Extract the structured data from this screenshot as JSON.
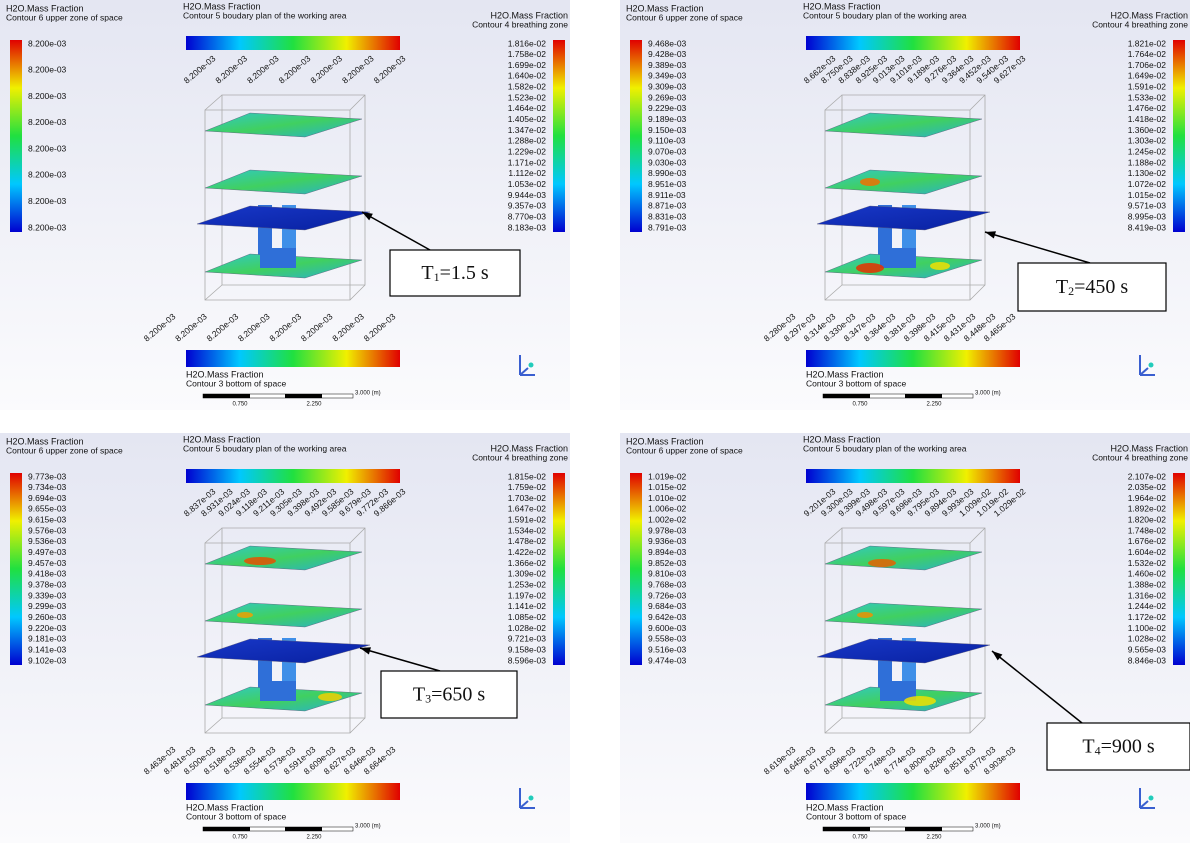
{
  "panels": [
    {
      "upper": {
        "title": "H2O.Mass Fraction",
        "subtitle": "Contour 6 upper zone of space",
        "labels": [
          "8.200e-03",
          "8.200e-03",
          "8.200e-03",
          "8.200e-03",
          "8.200e-03",
          "8.200e-03",
          "8.200e-03",
          "8.200e-03"
        ]
      },
      "top": {
        "title": "H2O.Mass Fraction",
        "subtitle": "Contour 5 boudary plan of the working area",
        "labels": [
          "8.200e-03",
          "8.200e-03",
          "8.200e-03",
          "8.200e-03",
          "8.200e-03",
          "8.200e-03",
          "8.200e-03"
        ]
      },
      "right": {
        "title": "H2O.Mass Fraction",
        "subtitle": "Contour 4 breathing zone",
        "labels": [
          "1.816e-02",
          "1.758e-02",
          "1.699e-02",
          "1.640e-02",
          "1.582e-02",
          "1.523e-02",
          "1.464e-02",
          "1.405e-02",
          "1.347e-02",
          "1.288e-02",
          "1.229e-02",
          "1.171e-02",
          "1.112e-02",
          "1.053e-02",
          "9.944e-03",
          "9.357e-03",
          "8.770e-03",
          "8.183e-03"
        ]
      },
      "bottom": {
        "title": "H2O.Mass Fraction",
        "subtitle": "Contour 3 bottom of space",
        "labels": [
          "8.200e-03",
          "8.200e-03",
          "8.200e-03",
          "8.200e-03",
          "8.200e-03",
          "8.200e-03",
          "8.200e-03",
          "8.200e-03"
        ]
      },
      "scale": [
        "0.750",
        "2.250",
        "3.000 (m)"
      ],
      "time": {
        "symbol": "T",
        "subscript": "1",
        "rest": "=1.5 s"
      }
    },
    {
      "upper": {
        "title": "H2O.Mass Fraction",
        "subtitle": "Contour 6 upper zone of space",
        "labels": [
          "9.468e-03",
          "9.428e-03",
          "9.389e-03",
          "9.349e-03",
          "9.309e-03",
          "9.269e-03",
          "9.229e-03",
          "9.189e-03",
          "9.150e-03",
          "9.110e-03",
          "9.070e-03",
          "9.030e-03",
          "8.990e-03",
          "8.951e-03",
          "8.911e-03",
          "8.871e-03",
          "8.831e-03",
          "8.791e-03"
        ]
      },
      "top": {
        "title": "H2O.Mass Fraction",
        "subtitle": "Contour 5 boudary plan of the working area",
        "labels": [
          "8.662e-03",
          "8.750e-03",
          "8.838e-03",
          "8.925e-03",
          "9.013e-03",
          "9.101e-03",
          "9.189e-03",
          "9.276e-03",
          "9.364e-03",
          "9.452e-03",
          "9.540e-03",
          "9.627e-03"
        ]
      },
      "right": {
        "title": "H2O.Mass Fraction",
        "subtitle": "Contour 4 breathing zone",
        "labels": [
          "1.821e-02",
          "1.764e-02",
          "1.706e-02",
          "1.649e-02",
          "1.591e-02",
          "1.533e-02",
          "1.476e-02",
          "1.418e-02",
          "1.360e-02",
          "1.303e-02",
          "1.245e-02",
          "1.188e-02",
          "1.130e-02",
          "1.072e-02",
          "1.015e-02",
          "9.571e-03",
          "8.995e-03",
          "8.419e-03"
        ]
      },
      "bottom": {
        "title": "H2O.Mass Fraction",
        "subtitle": "Contour 3 bottom of space",
        "labels": [
          "8.280e-03",
          "8.297e-03",
          "8.314e-03",
          "8.330e-03",
          "8.347e-03",
          "8.364e-03",
          "8.381e-03",
          "8.398e-03",
          "8.415e-03",
          "8.431e-03",
          "8.448e-03",
          "8.465e-03"
        ]
      },
      "scale": [
        "0.750",
        "2.250",
        "3.000 (m)"
      ],
      "time": {
        "symbol": "T",
        "subscript": "2",
        "rest": "=450 s"
      }
    },
    {
      "upper": {
        "title": "H2O.Mass Fraction",
        "subtitle": "Contour 6 upper zone of space",
        "labels": [
          "9.773e-03",
          "9.734e-03",
          "9.694e-03",
          "9.655e-03",
          "9.615e-03",
          "9.576e-03",
          "9.536e-03",
          "9.497e-03",
          "9.457e-03",
          "9.418e-03",
          "9.378e-03",
          "9.339e-03",
          "9.299e-03",
          "9.260e-03",
          "9.220e-03",
          "9.181e-03",
          "9.141e-03",
          "9.102e-03"
        ]
      },
      "top": {
        "title": "H2O.Mass Fraction",
        "subtitle": "Contour 5 boudary plan of the working area",
        "labels": [
          "8.837e-03",
          "8.931e-03",
          "9.024e-03",
          "9.118e-03",
          "9.211e-03",
          "9.305e-03",
          "9.398e-03",
          "9.492e-03",
          "9.585e-03",
          "9.679e-03",
          "9.772e-03",
          "9.866e-03"
        ]
      },
      "right": {
        "title": "H2O.Mass Fraction",
        "subtitle": "Contour 4 breathing zone",
        "labels": [
          "1.815e-02",
          "1.759e-02",
          "1.703e-02",
          "1.647e-02",
          "1.591e-02",
          "1.534e-02",
          "1.478e-02",
          "1.422e-02",
          "1.366e-02",
          "1.309e-02",
          "1.253e-02",
          "1.197e-02",
          "1.141e-02",
          "1.085e-02",
          "1.028e-02",
          "9.721e-03",
          "9.158e-03",
          "8.596e-03"
        ]
      },
      "bottom": {
        "title": "H2O.Mass Fraction",
        "subtitle": "Contour 3 bottom of space",
        "labels": [
          "8.463e-03",
          "8.481e-03",
          "8.500e-03",
          "8.518e-03",
          "8.536e-03",
          "8.554e-03",
          "8.573e-03",
          "8.591e-03",
          "8.609e-03",
          "8.627e-03",
          "8.646e-03",
          "8.664e-03"
        ]
      },
      "scale": [
        "0.750",
        "2.250",
        "3.000 (m)"
      ],
      "time": {
        "symbol": "T",
        "subscript": "3",
        "rest": "=650 s"
      }
    },
    {
      "upper": {
        "title": "H2O.Mass Fraction",
        "subtitle": "Contour 6 upper zone of space",
        "labels": [
          "1.019e-02",
          "1.015e-02",
          "1.010e-02",
          "1.006e-02",
          "1.002e-02",
          "9.978e-03",
          "9.936e-03",
          "9.894e-03",
          "9.852e-03",
          "9.810e-03",
          "9.768e-03",
          "9.726e-03",
          "9.684e-03",
          "9.642e-03",
          "9.600e-03",
          "9.558e-03",
          "9.516e-03",
          "9.474e-03"
        ]
      },
      "top": {
        "title": "H2O.Mass Fraction",
        "subtitle": "Contour 5 boudary plan of the working area",
        "labels": [
          "9.201e-03",
          "9.300e-03",
          "9.399e-03",
          "9.498e-03",
          "9.597e-03",
          "9.696e-03",
          "9.795e-03",
          "9.894e-03",
          "9.993e-03",
          "1.009e-02",
          "1.019e-02",
          "1.029e-02"
        ]
      },
      "right": {
        "title": "H2O.Mass Fraction",
        "subtitle": "Contour 4 breathing zone",
        "labels": [
          "2.107e-02",
          "2.035e-02",
          "1.964e-02",
          "1.892e-02",
          "1.820e-02",
          "1.748e-02",
          "1.676e-02",
          "1.604e-02",
          "1.532e-02",
          "1.460e-02",
          "1.388e-02",
          "1.316e-02",
          "1.244e-02",
          "1.172e-02",
          "1.100e-02",
          "1.028e-02",
          "9.565e-03",
          "8.846e-03"
        ]
      },
      "bottom": {
        "title": "H2O.Mass Fraction",
        "subtitle": "Contour 3 bottom of space",
        "labels": [
          "8.619e-03",
          "8.645e-03",
          "8.671e-03",
          "8.696e-03",
          "8.722e-03",
          "8.748e-03",
          "8.774e-03",
          "8.800e-03",
          "8.826e-03",
          "8.851e-03",
          "8.877e-03",
          "8.903e-03"
        ]
      },
      "scale": [
        "0.750",
        "2.250",
        "3.000 (m)"
      ],
      "time": {
        "symbol": "T",
        "subscript": "4",
        "rest": "=900 s"
      }
    }
  ]
}
